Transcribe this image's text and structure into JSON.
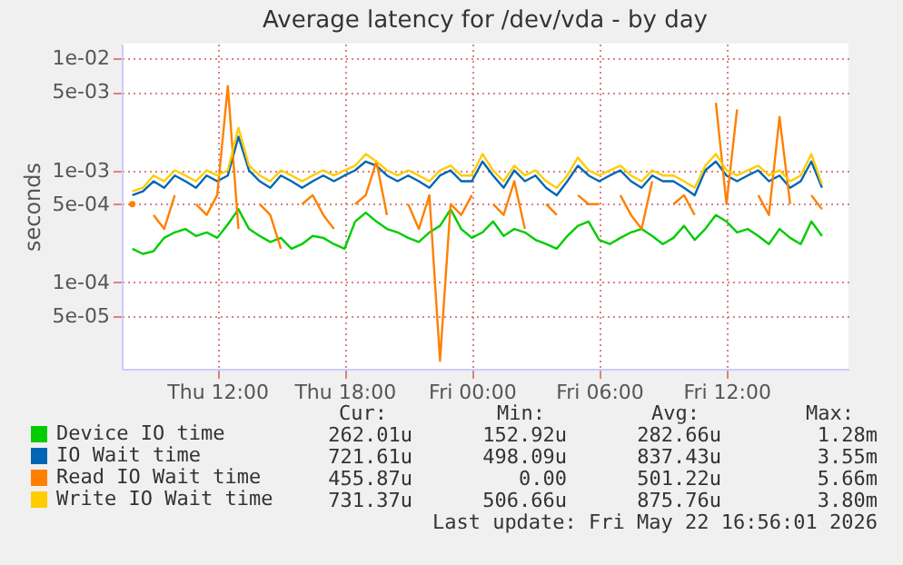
{
  "chart_data": {
    "type": "line",
    "title": "Average latency for /dev/vda - by day",
    "ylabel": "seconds",
    "log": "y",
    "grid": true,
    "legend": "bottom",
    "line_style": "solid",
    "marker": "none",
    "x": [
      "2026-05-21T08:00",
      "2026-05-21T08:30",
      "2026-05-21T09:00",
      "2026-05-21T09:30",
      "2026-05-21T10:00",
      "2026-05-21T10:30",
      "2026-05-21T11:00",
      "2026-05-21T11:30",
      "2026-05-21T12:00",
      "2026-05-21T12:30",
      "2026-05-21T13:00",
      "2026-05-21T13:30",
      "2026-05-21T14:00",
      "2026-05-21T14:30",
      "2026-05-21T15:00",
      "2026-05-21T15:30",
      "2026-05-21T16:00",
      "2026-05-21T16:30",
      "2026-05-21T17:00",
      "2026-05-21T17:30",
      "2026-05-21T18:00",
      "2026-05-21T18:30",
      "2026-05-21T19:00",
      "2026-05-21T19:30",
      "2026-05-21T20:00",
      "2026-05-21T20:30",
      "2026-05-21T21:00",
      "2026-05-21T21:30",
      "2026-05-21T22:00",
      "2026-05-21T22:30",
      "2026-05-21T23:00",
      "2026-05-21T23:30",
      "2026-05-22T00:00",
      "2026-05-22T00:30",
      "2026-05-22T01:00",
      "2026-05-22T01:30",
      "2026-05-22T02:00",
      "2026-05-22T02:30",
      "2026-05-22T03:00",
      "2026-05-22T03:30",
      "2026-05-22T04:00",
      "2026-05-22T04:30",
      "2026-05-22T05:00",
      "2026-05-22T05:30",
      "2026-05-22T06:00",
      "2026-05-22T06:30",
      "2026-05-22T07:00",
      "2026-05-22T07:30",
      "2026-05-22T08:00",
      "2026-05-22T08:30",
      "2026-05-22T09:00",
      "2026-05-22T09:30",
      "2026-05-22T10:00",
      "2026-05-22T10:30",
      "2026-05-22T11:00",
      "2026-05-22T11:30",
      "2026-05-22T12:00",
      "2026-05-22T12:30",
      "2026-05-22T13:00",
      "2026-05-22T13:30",
      "2026-05-22T14:00",
      "2026-05-22T14:30",
      "2026-05-22T15:00",
      "2026-05-22T15:30",
      "2026-05-22T16:00",
      "2026-05-22T16:30"
    ],
    "xlim": [
      "2026-05-21T07:30",
      "2026-05-22T17:45"
    ],
    "xticks": [
      {
        "value": "2026-05-21T12:00",
        "label": "Thu 12:00"
      },
      {
        "value": "2026-05-21T18:00",
        "label": "Thu 18:00"
      },
      {
        "value": "2026-05-22T00:00",
        "label": "Fri 00:00"
      },
      {
        "value": "2026-05-22T06:00",
        "label": "Fri 06:00"
      },
      {
        "value": "2026-05-22T12:00",
        "label": "Fri 12:00"
      }
    ],
    "ylim": [
      1.7e-05,
      0.0135
    ],
    "yticks": [
      {
        "value": 5e-05,
        "label": "5e-05"
      },
      {
        "value": 0.0001,
        "label": "1e-04"
      },
      {
        "value": 0.0005,
        "label": "5e-04"
      },
      {
        "value": 0.001,
        "label": "1e-03"
      },
      {
        "value": 0.005,
        "label": "5e-03"
      },
      {
        "value": 0.01,
        "label": "1e-02"
      }
    ],
    "series": [
      {
        "name": "Device IO time",
        "color": "#00cc00",
        "values": [
          0.0002,
          0.00018,
          0.00019,
          0.00025,
          0.00028,
          0.0003,
          0.00026,
          0.00028,
          0.00025,
          0.00033,
          0.00045,
          0.0003,
          0.00026,
          0.00023,
          0.00025,
          0.0002,
          0.00022,
          0.00026,
          0.00025,
          0.00022,
          0.0002,
          0.00035,
          0.00042,
          0.00035,
          0.0003,
          0.00028,
          0.00025,
          0.00023,
          0.00028,
          0.00032,
          0.00045,
          0.0003,
          0.00025,
          0.00028,
          0.00035,
          0.00026,
          0.0003,
          0.00028,
          0.00024,
          0.00022,
          0.0002,
          0.00026,
          0.00032,
          0.00035,
          0.00024,
          0.00022,
          0.00025,
          0.00028,
          0.0003,
          0.00026,
          0.00022,
          0.00025,
          0.00032,
          0.00024,
          0.0003,
          0.0004,
          0.00035,
          0.00028,
          0.0003,
          0.00026,
          0.00022,
          0.0003,
          0.00025,
          0.00022,
          0.00035,
          0.00026
        ]
      },
      {
        "name": "IO Wait time",
        "color": "#0066b3",
        "values": [
          0.0006,
          0.00065,
          0.0008,
          0.0007,
          0.0009,
          0.0008,
          0.0007,
          0.0009,
          0.0008,
          0.0009,
          0.002,
          0.001,
          0.0008,
          0.0007,
          0.0009,
          0.0008,
          0.0007,
          0.0008,
          0.0009,
          0.0008,
          0.0009,
          0.001,
          0.0012,
          0.0011,
          0.0009,
          0.0008,
          0.0009,
          0.0008,
          0.0007,
          0.0009,
          0.001,
          0.0008,
          0.0008,
          0.0012,
          0.0009,
          0.0007,
          0.001,
          0.0008,
          0.0009,
          0.0007,
          0.0006,
          0.0008,
          0.0011,
          0.0009,
          0.0008,
          0.0009,
          0.001,
          0.0008,
          0.0007,
          0.0009,
          0.0008,
          0.0008,
          0.0007,
          0.0006,
          0.001,
          0.0012,
          0.0009,
          0.0008,
          0.0009,
          0.001,
          0.0008,
          0.0009,
          0.0007,
          0.0008,
          0.0012,
          0.0007
        ]
      },
      {
        "name": "Read IO Wait time",
        "color": "#ff8000",
        "values": [
          0.0005,
          null,
          0.0004,
          0.0003,
          0.0006,
          null,
          0.0005,
          0.0004,
          0.0006,
          0.00566,
          0.0003,
          null,
          0.0005,
          0.0004,
          0.0002,
          null,
          0.0005,
          0.0006,
          0.0004,
          0.0003,
          null,
          0.0005,
          0.0006,
          0.0012,
          0.0004,
          null,
          0.0005,
          0.0003,
          0.0006,
          2e-05,
          0.0005,
          0.0004,
          0.0006,
          null,
          0.0005,
          0.0004,
          0.0008,
          0.0003,
          null,
          0.0005,
          0.0004,
          null,
          0.0006,
          0.0005,
          0.0005,
          null,
          0.0006,
          0.0004,
          0.0003,
          0.0008,
          null,
          0.0005,
          0.0006,
          0.0004,
          null,
          0.004,
          0.0005,
          0.0035,
          null,
          0.0006,
          0.0004,
          0.003,
          0.0005,
          null,
          0.0006,
          0.00045
        ]
      },
      {
        "name": "Write IO Wait time",
        "color": "#ffcc00",
        "values": [
          0.00065,
          0.0007,
          0.0009,
          0.0008,
          0.001,
          0.0009,
          0.0008,
          0.001,
          0.0009,
          0.001,
          0.0024,
          0.0011,
          0.0009,
          0.0008,
          0.001,
          0.0009,
          0.0008,
          0.0009,
          0.001,
          0.0009,
          0.001,
          0.0011,
          0.0014,
          0.0012,
          0.001,
          0.0009,
          0.001,
          0.0009,
          0.0008,
          0.001,
          0.0011,
          0.0009,
          0.0009,
          0.0014,
          0.001,
          0.0008,
          0.0011,
          0.0009,
          0.001,
          0.0008,
          0.0007,
          0.0009,
          0.0013,
          0.001,
          0.0009,
          0.001,
          0.0011,
          0.0009,
          0.0008,
          0.001,
          0.0009,
          0.0009,
          0.0008,
          0.0007,
          0.0011,
          0.0014,
          0.001,
          0.0009,
          0.001,
          0.0011,
          0.0009,
          0.001,
          0.0008,
          0.0009,
          0.0014,
          0.00075
        ]
      }
    ],
    "annotations": [
      "Cur:",
      "Min:",
      "Avg:",
      "Max:",
      "262.01u",
      "152.92u",
      "282.66u",
      "1.28m",
      "721.61u",
      "498.09u",
      "837.43u",
      "3.55m",
      "455.87u",
      "0.00",
      "501.22u",
      "5.66m",
      "731.37u",
      "506.66u",
      "875.76u",
      "3.80m",
      "Last update: Fri May 22 16:56:01 2026"
    ]
  }
}
